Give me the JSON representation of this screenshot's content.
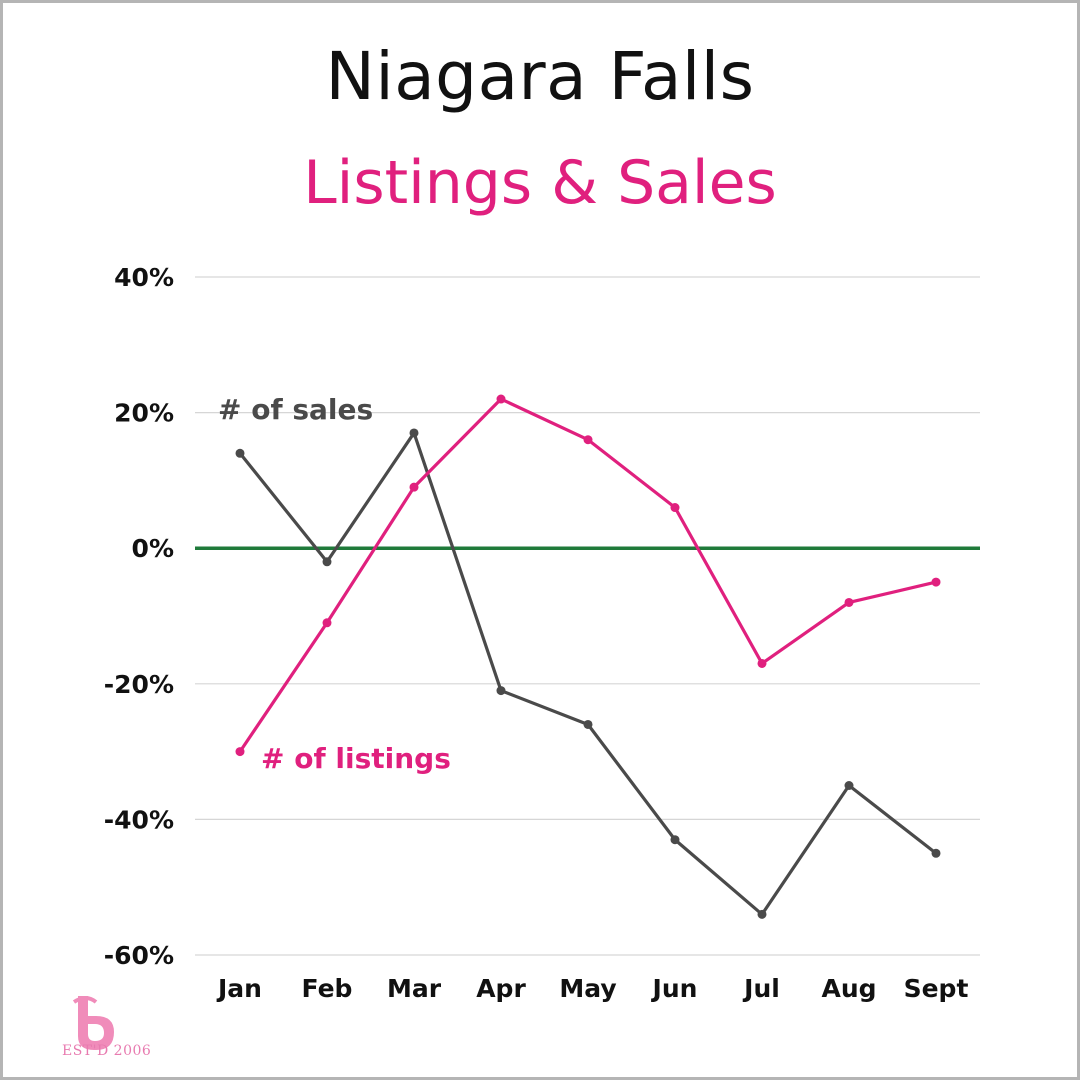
{
  "colors": {
    "sales": "#4a4a4a",
    "listings": "#e0207e",
    "zero_line": "#1f7a3a",
    "grid": "#d6d6d6",
    "logo": "#f08cba"
  },
  "logo": {
    "icon": "b-monogram-icon",
    "text": "EST'D 2006"
  },
  "chart_data": {
    "type": "line",
    "title": "Niagara Falls",
    "subtitle": "Listings & Sales",
    "categories": [
      "Jan",
      "Feb",
      "Mar",
      "Apr",
      "May",
      "Jun",
      "Jul",
      "Aug",
      "Sept"
    ],
    "yticks": [
      40,
      20,
      0,
      -20,
      -40,
      -60
    ],
    "ytick_labels": [
      "40%",
      "20%",
      "0%",
      "-20%",
      "-40%",
      "-60%"
    ],
    "ylim": [
      -60,
      40
    ],
    "grid": true,
    "series": [
      {
        "name": "# of sales",
        "key": "sales",
        "values": [
          14,
          -2,
          17,
          -21,
          -26,
          -43,
          -54,
          -35,
          -45
        ]
      },
      {
        "name": "# of listings",
        "key": "listings",
        "values": [
          -30,
          -11,
          9,
          22,
          16,
          6,
          -17,
          -8,
          -5
        ]
      }
    ]
  }
}
